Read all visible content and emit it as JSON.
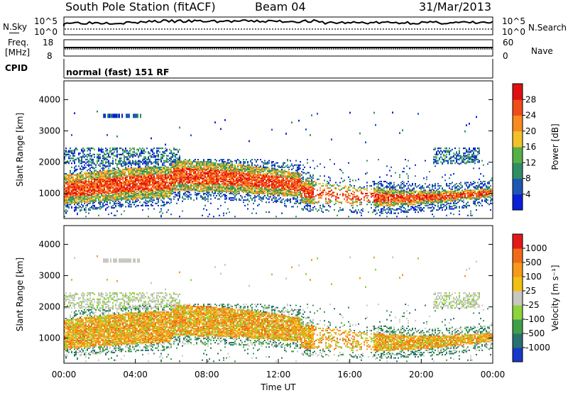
{
  "header": {
    "station": "South Pole Station (fitACF)",
    "beam": "Beam 04",
    "date": "31/Mar/2013"
  },
  "strip": {
    "left_top": "N.Sky",
    "left_freq_1": "Freq.",
    "left_freq_2": "[MHz]",
    "cpid": "CPID",
    "right_top": "N.Search",
    "right_mid": "Nave",
    "sky_tick_hi": "10^5",
    "sky_tick_lo": "10^0",
    "freq_tick_hi": "18",
    "freq_tick_lo": "8",
    "nave_tick_hi": "60",
    "nave_tick_lo": "0",
    "mode": "normal (fast) 151 RF"
  },
  "chart_data": [
    {
      "type": "heatmap",
      "panel": "power",
      "xlabel": "",
      "ylabel": "Slant Range [km]",
      "xlim": [
        "00:00",
        "24:00"
      ],
      "ylim": [
        200,
        4600
      ],
      "y_ticks": [
        1000,
        2000,
        3000,
        4000
      ],
      "colorbar": {
        "label": "Power [dB]",
        "ticks": [
          4,
          8,
          12,
          16,
          20,
          24,
          28
        ],
        "colors": [
          "#0b1fd6",
          "#1e56b4",
          "#2f8d64",
          "#55b048",
          "#f2c12a",
          "#f88a20",
          "#f24b1a",
          "#e01010"
        ]
      }
    },
    {
      "type": "heatmap",
      "panel": "velocity",
      "xlabel": "Time UT",
      "ylabel": "Slant Range [km]",
      "xlim": [
        "00:00",
        "24:00"
      ],
      "ylim": [
        200,
        4600
      ],
      "x_ticks": [
        "00:00",
        "04:00",
        "08:00",
        "12:00",
        "16:00",
        "20:00",
        "00:00"
      ],
      "y_ticks": [
        1000,
        2000,
        3000,
        4000
      ],
      "colorbar": {
        "label": "Velocity [m s⁻¹]",
        "ticks": [
          1000,
          500,
          100,
          25,
          -25,
          -100,
          -500,
          -1000
        ],
        "colors": [
          "#1838c8",
          "#2a7070",
          "#3f9e4a",
          "#8cd43c",
          "#c8c8c0",
          "#f2c012",
          "#f59a1a",
          "#f06a18",
          "#e41818"
        ]
      }
    }
  ]
}
